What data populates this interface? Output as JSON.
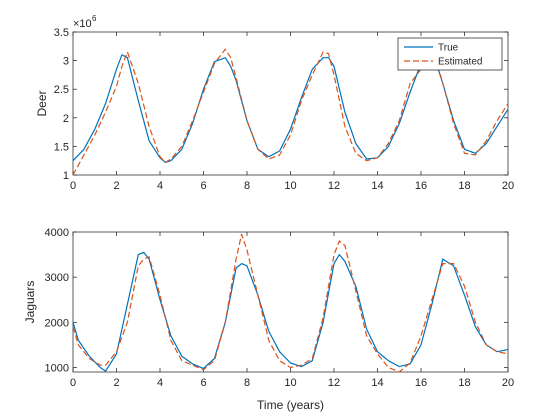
{
  "chart_data": [
    {
      "type": "line",
      "ylabel": "Deer",
      "xlabel": "",
      "xlim": [
        0,
        20
      ],
      "ylim": [
        1,
        3.5
      ],
      "xticks": [
        "0",
        "2",
        "4",
        "6",
        "8",
        "10",
        "12",
        "14",
        "16",
        "18",
        "20"
      ],
      "yticks": [
        "1",
        "1.5",
        "2",
        "2.5",
        "3",
        "3.5"
      ],
      "y_multiplier": {
        "base": "×10",
        "exponent": "6"
      },
      "legend": {
        "location": "top-right",
        "entries": [
          "True",
          "Estimated"
        ]
      },
      "x": [
        0,
        0.5,
        1,
        1.5,
        2,
        2.25,
        2.5,
        3,
        3.5,
        4,
        4.25,
        4.5,
        5,
        5.5,
        6,
        6.5,
        7,
        7.25,
        7.5,
        8,
        8.5,
        9,
        9.5,
        10,
        10.5,
        11,
        11.5,
        11.75,
        12,
        12.5,
        13,
        13.5,
        14,
        14.5,
        15,
        15.5,
        16,
        16.5,
        16.75,
        17,
        17.5,
        18,
        18.5,
        19,
        19.5,
        20
      ],
      "series": [
        {
          "name": "True",
          "color": "#0072BD",
          "dash": "solid",
          "values": [
            1.25,
            1.45,
            1.8,
            2.25,
            2.85,
            3.1,
            3.05,
            2.3,
            1.6,
            1.3,
            1.22,
            1.25,
            1.45,
            1.9,
            2.5,
            2.98,
            3.05,
            2.9,
            2.65,
            1.95,
            1.45,
            1.32,
            1.42,
            1.8,
            2.35,
            2.85,
            3.05,
            3.05,
            2.9,
            2.1,
            1.55,
            1.28,
            1.3,
            1.5,
            1.9,
            2.45,
            2.95,
            3.0,
            2.9,
            2.6,
            1.95,
            1.45,
            1.38,
            1.55,
            1.85,
            2.15
          ]
        },
        {
          "name": "Estimated",
          "color": "#D95319",
          "dash": "dashed",
          "values": [
            1.0,
            1.35,
            1.7,
            2.1,
            2.55,
            2.9,
            3.15,
            2.6,
            1.85,
            1.32,
            1.22,
            1.28,
            1.5,
            1.95,
            2.45,
            2.95,
            3.2,
            3.05,
            2.7,
            1.95,
            1.45,
            1.28,
            1.35,
            1.7,
            2.3,
            2.75,
            3.15,
            3.12,
            2.75,
            1.85,
            1.38,
            1.25,
            1.3,
            1.55,
            1.95,
            2.6,
            2.85,
            3.0,
            2.95,
            2.6,
            1.9,
            1.38,
            1.35,
            1.6,
            1.95,
            2.25
          ]
        }
      ]
    },
    {
      "type": "line",
      "ylabel": "Jaguars",
      "xlabel": "Time (years)",
      "xlim": [
        0,
        20
      ],
      "ylim": [
        900,
        4000
      ],
      "xticks": [
        "0",
        "2",
        "4",
        "6",
        "8",
        "10",
        "12",
        "14",
        "16",
        "18",
        "20"
      ],
      "yticks": [
        "1000",
        "2000",
        "3000",
        "4000"
      ],
      "x": [
        0,
        0.25,
        0.75,
        1.25,
        1.5,
        2,
        2.5,
        3,
        3.25,
        3.5,
        4,
        4.5,
        5,
        5.5,
        6,
        6.5,
        7,
        7.5,
        7.75,
        8,
        8.5,
        9,
        9.5,
        10,
        10.5,
        11,
        11.5,
        12,
        12.25,
        12.5,
        13,
        13.5,
        14,
        14.5,
        15,
        15.5,
        16,
        16.5,
        17,
        17.5,
        18,
        18.5,
        19,
        19.5,
        20
      ],
      "series": [
        {
          "name": "True",
          "color": "#0072BD",
          "dash": "solid",
          "values": [
            2000,
            1600,
            1250,
            1000,
            920,
            1300,
            2400,
            3500,
            3550,
            3400,
            2500,
            1700,
            1250,
            1080,
            980,
            1200,
            2000,
            3200,
            3300,
            3250,
            2600,
            1800,
            1350,
            1100,
            1020,
            1150,
            2000,
            3300,
            3500,
            3350,
            2800,
            1850,
            1350,
            1150,
            1020,
            1080,
            1500,
            2400,
            3400,
            3250,
            2600,
            1900,
            1500,
            1350,
            1400
          ]
        },
        {
          "name": "Estimated",
          "color": "#D95319",
          "dash": "dashed",
          "values": [
            1900,
            1500,
            1200,
            1050,
            1050,
            1350,
            2000,
            3250,
            3400,
            3450,
            2600,
            1600,
            1150,
            1050,
            950,
            1150,
            2000,
            3400,
            3950,
            3600,
            2600,
            1600,
            1150,
            1000,
            1050,
            1200,
            2100,
            3500,
            3800,
            3700,
            2700,
            1700,
            1300,
            1000,
            900,
            1100,
            1700,
            2500,
            3300,
            3300,
            2800,
            2000,
            1500,
            1350,
            1300
          ]
        }
      ]
    }
  ]
}
